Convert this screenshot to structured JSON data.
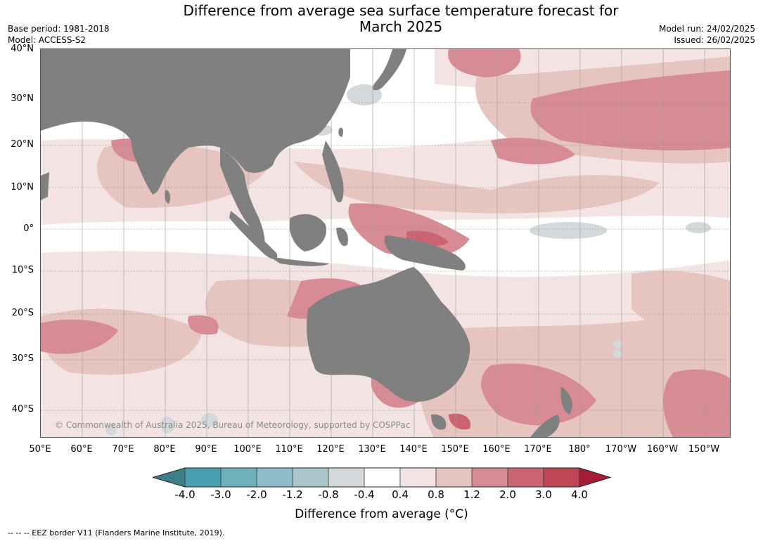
{
  "title_line1": "Difference from average sea surface temperature forecast for",
  "title_line2": "March 2025",
  "base_period": "Base period: 1981-2018",
  "model": "Model: ACCESS-S2",
  "model_run": "Model run: 24/02/2025",
  "issued": "Issued: 26/02/2025",
  "lat_labels": [
    "40°N",
    "30°N",
    "20°N",
    "10°N",
    "0°",
    "10°S",
    "20°S",
    "30°S",
    "40°S"
  ],
  "lon_labels": [
    "50°E",
    "60°E",
    "70°E",
    "80°E",
    "90°E",
    "100°E",
    "110°E",
    "120°E",
    "130°E",
    "140°E",
    "150°E",
    "160°E",
    "170°E",
    "180°",
    "170°W",
    "160°W",
    "150°W"
  ],
  "copyright": "© Commonwealth of Australia 2025, Bureau of Meteorology, supported by COSPPac",
  "colorbar": {
    "ticks": [
      "-4.0",
      "-3.0",
      "-2.0",
      "-1.2",
      "-0.8",
      "-0.4",
      "0.4",
      "0.8",
      "1.2",
      "2.0",
      "3.0",
      "4.0"
    ],
    "colors": [
      "#3d7e88",
      "#4a9fb2",
      "#6fb0bd",
      "#8fbcc6",
      "#abc6cb",
      "#d3d9da",
      "#ffffff",
      "#f3e4e3",
      "#e6c4c0",
      "#d78c95",
      "#c96470",
      "#bf4655",
      "#a81c35"
    ],
    "label": "Difference from average (°C)"
  },
  "land_color": "#808080",
  "footnote": "-- -- -- EEZ border V11 (Flanders Marine Institute, 2019)."
}
